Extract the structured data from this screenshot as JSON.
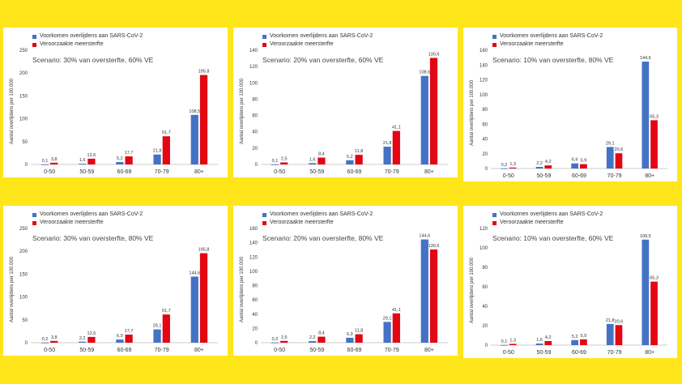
{
  "legend_labels": [
    "Voorkomen overlijdens aan SARS-CoV-2",
    "Veroorzaakte meersterfte"
  ],
  "colors": {
    "blue": "#4472C4",
    "red": "#E30613",
    "background": "#FFE61A"
  },
  "y_axis_label": "Aantal overlijdens  per 100.000",
  "chart_data": [
    {
      "type": "bar",
      "scenario": "Scenario: 30% van oversterfte,  60% VE",
      "categories": [
        "0-50",
        "50-59",
        "60-69",
        "70-79",
        "80+"
      ],
      "ylim": [
        0,
        250
      ],
      "yticks": [
        0,
        50,
        100,
        150,
        200,
        250
      ],
      "series": [
        {
          "name": "Voorkomen overlijdens aan SARS-CoV-2",
          "values": [
            0.1,
            1.6,
            5.2,
            21.8,
            108.5
          ],
          "labels": [
            "0,1",
            "1,6",
            "5,2",
            "21,8",
            "108,5"
          ]
        },
        {
          "name": "Veroorzaakte meersterfte",
          "values": [
            3.8,
            12.6,
            17.7,
            61.7,
            195.8
          ],
          "labels": [
            "3,8",
            "12,6",
            "17,7",
            "61,7",
            "195,8"
          ]
        }
      ]
    },
    {
      "type": "bar",
      "scenario": "Scenario: 20% van oversterfte,  60% VE",
      "categories": [
        "0-50",
        "50-59",
        "60-69",
        "70-79",
        "80+"
      ],
      "ylim": [
        0,
        140
      ],
      "yticks": [
        0,
        20,
        40,
        60,
        80,
        100,
        120,
        140
      ],
      "series": [
        {
          "name": "Voorkomen overlijdens aan SARS-CoV-2",
          "values": [
            0.1,
            1.6,
            5.2,
            21.8,
            108.5
          ],
          "labels": [
            "0,1",
            "1,6",
            "5,2",
            "21,8",
            "108,5"
          ]
        },
        {
          "name": "Veroorzaakte meersterfte",
          "values": [
            2.5,
            8.4,
            11.8,
            41.1,
            130.6
          ],
          "labels": [
            "2,5",
            "8,4",
            "11,8",
            "41,1",
            "130,6"
          ]
        }
      ]
    },
    {
      "type": "bar",
      "scenario": "Scenario: 10% van oversterfte,  80% VE",
      "categories": [
        "0-50",
        "50-59",
        "60-69",
        "70-79",
        "80+"
      ],
      "ylim": [
        0,
        160
      ],
      "yticks": [
        0,
        20,
        40,
        60,
        80,
        100,
        120,
        140,
        160
      ],
      "series": [
        {
          "name": "Voorkomen overlijdens aan SARS-CoV-2",
          "values": [
            0.2,
            2.2,
            6.9,
            29.1,
            144.6
          ],
          "labels": [
            "0,2",
            "2,2",
            "6,9",
            "29,1",
            "144,6"
          ]
        },
        {
          "name": "Veroorzaakte meersterfte",
          "values": [
            1.3,
            4.2,
            5.9,
            20.6,
            65.3
          ],
          "labels": [
            "1,3",
            "4,2",
            "5,9",
            "20,6",
            "65,3"
          ]
        }
      ]
    },
    {
      "type": "bar",
      "scenario": "Scenario: 30% van oversterfte,  80% VE",
      "categories": [
        "0-50",
        "50-59",
        "60-69",
        "70-79",
        "80+"
      ],
      "ylim": [
        0,
        250
      ],
      "yticks": [
        0,
        50,
        100,
        150,
        200,
        250
      ],
      "series": [
        {
          "name": "Voorkomen overlijdens aan SARS-CoV-2",
          "values": [
            0.2,
            2.2,
            6.9,
            29.1,
            144.6
          ],
          "labels": [
            "0,2",
            "2,2",
            "6,9",
            "29,1",
            "144,6"
          ]
        },
        {
          "name": "Veroorzaakte meersterfte",
          "values": [
            3.8,
            12.6,
            17.7,
            61.7,
            195.8
          ],
          "labels": [
            "3,8",
            "12,6",
            "17,7",
            "61,7",
            "195,8"
          ]
        }
      ]
    },
    {
      "type": "bar",
      "scenario": "Scenario: 20% van oversterfte,  80% VE",
      "categories": [
        "0-50",
        "50-59",
        "60-69",
        "70-79",
        "80+"
      ],
      "ylim": [
        0,
        160
      ],
      "yticks": [
        0,
        20,
        40,
        60,
        80,
        100,
        120,
        140,
        160
      ],
      "series": [
        {
          "name": "Voorkomen overlijdens aan SARS-CoV-2",
          "values": [
            0.2,
            2.2,
            6.9,
            29.1,
            144.6
          ],
          "labels": [
            "0,2",
            "2,2",
            "6,9",
            "29,1",
            "144,6"
          ]
        },
        {
          "name": "Veroorzaakte meersterfte",
          "values": [
            2.5,
            8.4,
            11.8,
            41.1,
            130.6
          ],
          "labels": [
            "2,5",
            "8,4",
            "11,8",
            "41,1",
            "130,6"
          ]
        }
      ]
    },
    {
      "type": "bar",
      "scenario": "Scenario: 10% van oversterfte,  60% VE",
      "categories": [
        "0-50",
        "50-59",
        "60-69",
        "70-79",
        "80+"
      ],
      "ylim": [
        0,
        120
      ],
      "yticks": [
        0,
        20,
        40,
        60,
        80,
        100,
        120
      ],
      "series": [
        {
          "name": "Voorkomen overlijdens aan SARS-CoV-2",
          "values": [
            0.1,
            1.6,
            5.2,
            21.8,
            108.5
          ],
          "labels": [
            "0,1",
            "1,6",
            "5,2",
            "21,8",
            "108,5"
          ]
        },
        {
          "name": "Veroorzaakte meersterfte",
          "values": [
            1.3,
            4.2,
            5.9,
            20.6,
            65.3
          ],
          "labels": [
            "1,3",
            "4,2",
            "5,9",
            "20,6",
            "65,3"
          ]
        }
      ]
    }
  ]
}
